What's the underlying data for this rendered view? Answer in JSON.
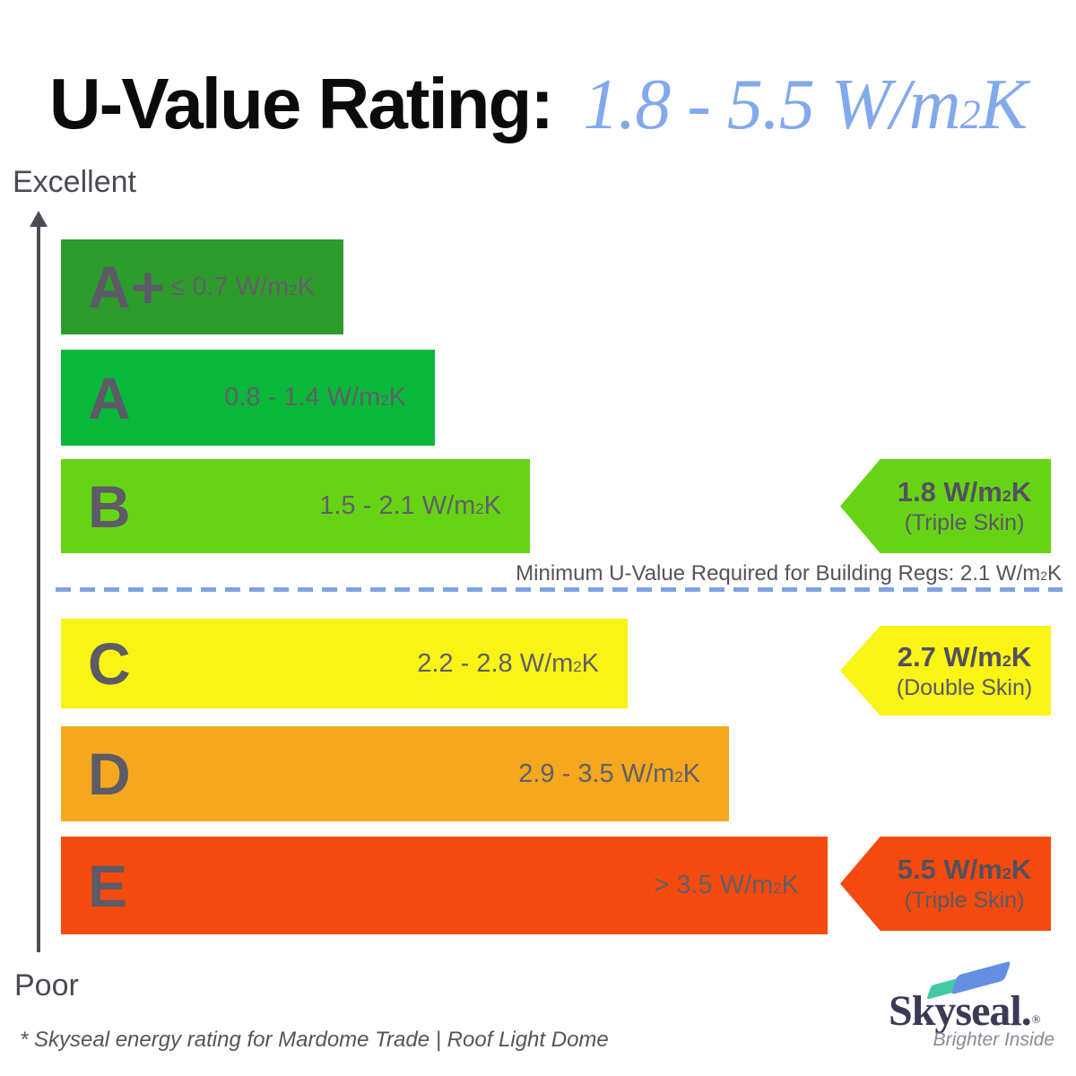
{
  "title": {
    "black": "U-Value Rating: ",
    "blue": "1.8 - 5.5 W/m²K"
  },
  "axis": {
    "top_label": "Excellent",
    "bottom_label": "Poor"
  },
  "bars": [
    {
      "grade": "A+",
      "range": "≤ 0.7 W/m²K",
      "color": "#2e9b2d"
    },
    {
      "grade": "A",
      "range": "0.8 - 1.4 W/m²K",
      "color": "#09b83b"
    },
    {
      "grade": "B",
      "range": "1.5 - 2.1 W/m²K",
      "color": "#67d315"
    },
    {
      "grade": "C",
      "range": "2.2 - 2.8 W/m²K",
      "color": "#f9f413"
    },
    {
      "grade": "D",
      "range": "2.9 - 3.5 W/m²K",
      "color": "#f5a81e"
    },
    {
      "grade": "E",
      "range": "> 3.5 W/m²K",
      "color": "#f54a0d"
    }
  ],
  "threshold": {
    "label": "Minimum U-Value Required for Building Regs: 2.1 W/m²K",
    "line_color": "#7da3e3"
  },
  "markers": [
    {
      "value": "1.8 W/m²K",
      "skin": "(Triple Skin)",
      "color": "#67d315",
      "aligned_band": "B"
    },
    {
      "value": "2.7 W/m²K",
      "skin": "(Double Skin)",
      "color": "#f9f413",
      "aligned_band": "C"
    },
    {
      "value": "5.5 W/m²K",
      "skin": "(Triple Skin)",
      "color": "#f54a0d",
      "aligned_band": "E"
    }
  ],
  "footer": {
    "note": "* Skyseal energy rating for Mardome Trade | Roof Light Dome"
  },
  "logo": {
    "name": "Skyseal.",
    "registered": "®",
    "tagline": "Brighter Inside",
    "navy": "#3b3a56",
    "teal": "#45c8a4",
    "blue": "#638fe2"
  },
  "chart_data": {
    "type": "bar",
    "orientation": "horizontal",
    "title": "U-Value Rating: 1.8 - 5.5 W/m²K",
    "categories": [
      "A+",
      "A",
      "B",
      "C",
      "D",
      "E"
    ],
    "band_ranges_wm2k": [
      "≤ 0.7",
      "0.8 - 1.4",
      "1.5 - 2.1",
      "2.2 - 2.8",
      "2.9 - 3.5",
      "> 3.5"
    ],
    "unit": "W/m²K",
    "bar_lengths_relative": [
      0.37,
      0.49,
      0.61,
      0.74,
      0.87,
      1.0
    ],
    "colors": [
      "#2e9b2d",
      "#09b83b",
      "#67d315",
      "#f9f413",
      "#f5a81e",
      "#f54a0d"
    ],
    "axis_top_label": "Excellent",
    "axis_bottom_label": "Poor",
    "threshold_line": {
      "label": "Minimum U-Value Required for Building Regs: 2.1 W/m²K",
      "value": 2.1,
      "position": "between B and C"
    },
    "markers": [
      {
        "value": 1.8,
        "label": "1.8 W/m²K (Triple Skin)",
        "aligned_band": "B"
      },
      {
        "value": 2.7,
        "label": "2.7 W/m²K (Double Skin)",
        "aligned_band": "C"
      },
      {
        "value": 5.5,
        "label": "5.5 W/m²K (Triple Skin)",
        "aligned_band": "E"
      }
    ],
    "legend_position": "none",
    "grid": false
  }
}
